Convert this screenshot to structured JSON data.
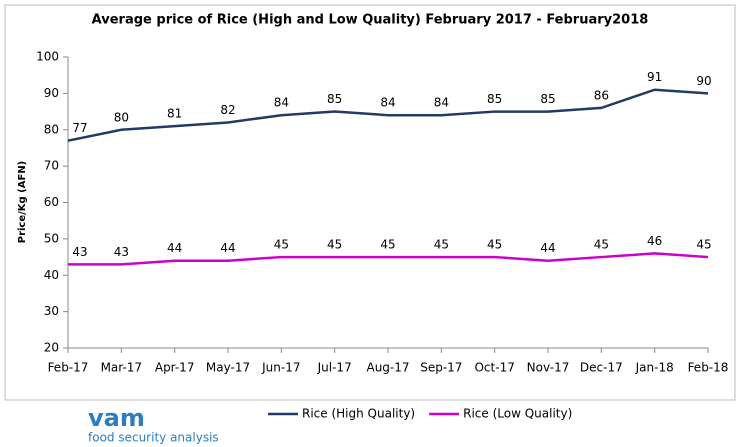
{
  "chart_data": {
    "type": "line",
    "title": "Average price of Rice (High and Low Quality) February 2017 - February2018",
    "y_label": "Price/Kg (AFN)",
    "categories": [
      "Feb-17",
      "Mar-17",
      "Apr-17",
      "May-17",
      "Jun-17",
      "Jul-17",
      "Aug-17",
      "Sep-17",
      "Oct-17",
      "Nov-17",
      "Dec-17",
      "Jan-18",
      "Feb-18"
    ],
    "series": [
      {
        "name": "Rice (High Quality)",
        "color": "#1f3b66",
        "values": [
          77,
          80,
          81,
          82,
          84,
          85,
          84,
          84,
          85,
          85,
          86,
          91,
          90
        ]
      },
      {
        "name": "Rice (Low Quality)",
        "color": "#cc00cc",
        "values": [
          43,
          43,
          44,
          44,
          45,
          45,
          45,
          45,
          45,
          44,
          45,
          46,
          45
        ]
      }
    ],
    "ylim": [
      20,
      100
    ],
    "yticks": [
      20,
      30,
      40,
      50,
      60,
      70,
      80,
      90,
      100
    ],
    "legend": "bottom"
  },
  "logo": {
    "name": "vam",
    "tagline": "food security analysis"
  }
}
